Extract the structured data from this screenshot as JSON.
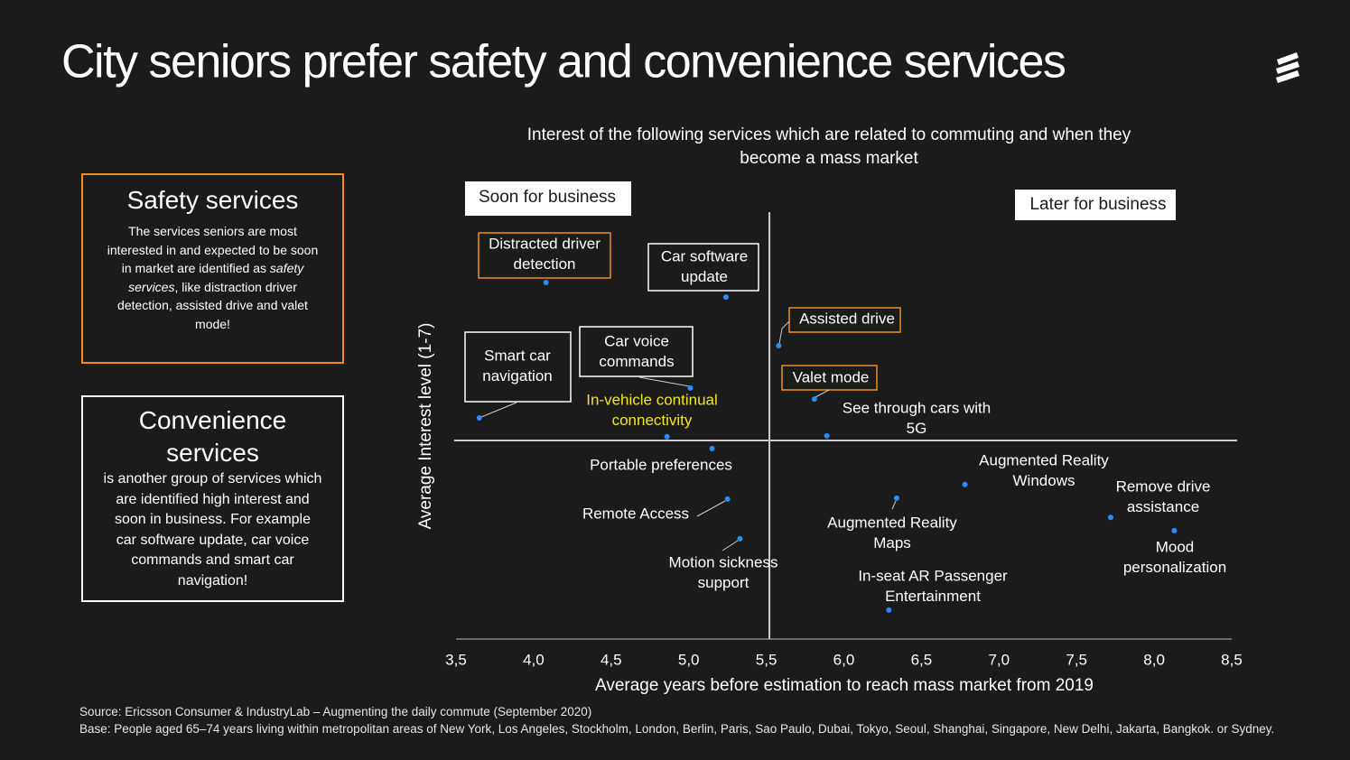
{
  "header": {
    "title": "City seniors prefer safety and convenience  services"
  },
  "safety_box": {
    "heading": "Safety services",
    "text_before": "The services seniors are most interested in and expected to be soon in market are identified as ",
    "text_italic": "safety services",
    "text_after": ", like distraction driver detection, assisted drive and valet mode!"
  },
  "convenience_box": {
    "heading": "Convenience services",
    "text": "is another group of services which are identified high interest and soon in business. For example car software update, car voice commands and smart car navigation!"
  },
  "footer": {
    "source": "Source: Ericsson Consumer & IndustryLab – Augmenting the daily commute (September 2020)",
    "base": "Base: People aged 65–74 years  living within metropolitan areas of New York, Los Angeles,  Stockholm,  London, Berlin, Paris, Sao Paulo, Dubai, Tokyo, Seoul, Shanghai, Singapore, New Delhi, Jakarta, Bangkok. or Sydney."
  },
  "chart_data": {
    "type": "scatter",
    "subtitle": [
      "Interest of the following services which are related to commuting and when they",
      "become a mass market"
    ],
    "x_label": "Average years before estimation  to reach mass market from 2019",
    "y_label": "Average Interest level (1-7)",
    "quadrant_labels": [
      "Soon for business",
      "Later for business"
    ],
    "labels": [
      [
        "Distracted driver",
        "detection"
      ],
      [
        "Car software",
        "update"
      ],
      [
        "Assisted drive"
      ],
      [
        "Smart car",
        "navigation"
      ],
      [
        "Car voice",
        "commands"
      ],
      [
        "Valet mode"
      ],
      [
        "In-vehicle continual",
        "connectivity"
      ],
      [
        "See through cars with",
        "5G"
      ],
      [
        "Portable preferences"
      ],
      [
        "Augmented Reality",
        "Windows"
      ],
      [
        "Remote Access"
      ],
      [
        "Augmented Reality",
        "Maps"
      ],
      [
        "Remove drive",
        "assistance"
      ],
      [
        "Mood",
        "personalization"
      ],
      [
        "Motion sickness",
        "support"
      ],
      [
        "In-seat AR Passenger",
        "Entertainment"
      ]
    ],
    "x": [
      4.08,
      5.24,
      5.58,
      3.65,
      5.01,
      5.81,
      4.86,
      5.89,
      5.15,
      6.78,
      5.25,
      6.34,
      7.72,
      8.13,
      5.33,
      6.29
    ],
    "y": [
      83.5,
      80.1,
      68.7,
      51.8,
      58.8,
      56.2,
      47.4,
      47.6,
      44.6,
      36.2,
      32.8,
      33.0,
      28.5,
      25.4,
      23.5,
      6.8
    ],
    "color": "#2b8cff",
    "xlim": [
      3.5,
      8.5
    ],
    "ylim": [
      0,
      100
    ],
    "xticks": [
      {
        "value": 3.5,
        "label": "3,5"
      },
      {
        "value": 4.0,
        "label": "4,0"
      },
      {
        "value": 4.5,
        "label": "4,5"
      },
      {
        "value": 5.0,
        "label": "5,0"
      },
      {
        "value": 5.5,
        "label": "5,5"
      },
      {
        "value": 6.0,
        "label": "6,0"
      },
      {
        "value": 6.5,
        "label": "6,5"
      },
      {
        "value": 7.0,
        "label": "7,0"
      },
      {
        "value": 7.5,
        "label": "7,5"
      },
      {
        "value": 8.0,
        "label": "8,0"
      },
      {
        "value": 8.5,
        "label": "8,5"
      }
    ],
    "divider_x": 5.52,
    "divider_y": 46.5
  }
}
